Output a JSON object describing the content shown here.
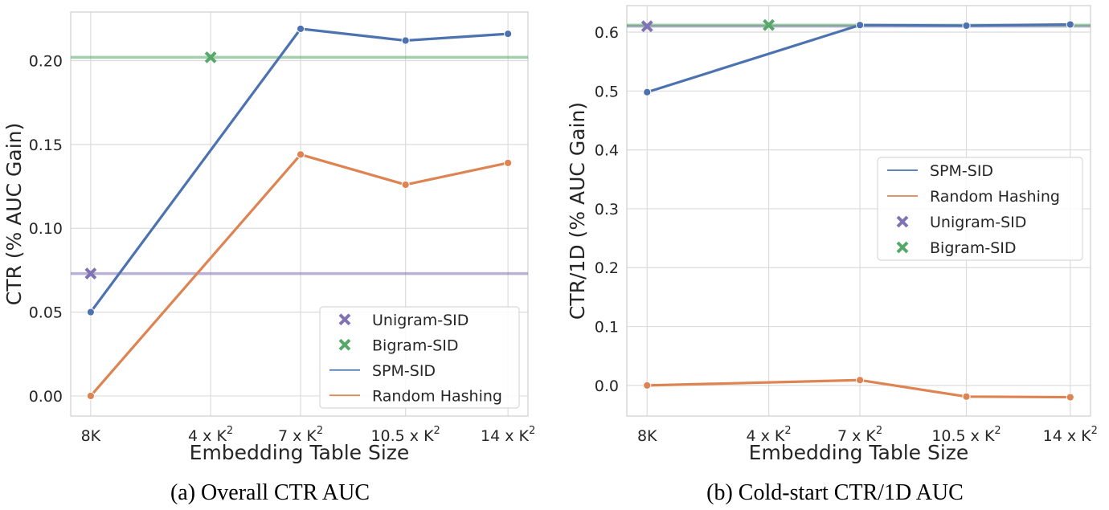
{
  "chart_data": [
    {
      "type": "line",
      "caption": "(a) Overall CTR AUC",
      "xlabel": "Embedding Table Size",
      "ylabel": "CTR (% AUC Gain)",
      "x_ticks": [
        {
          "pos": 8,
          "base": "8K",
          "sup": ""
        },
        {
          "pos": 56,
          "base": "4 x K",
          "sup": "2"
        },
        {
          "pos": 92,
          "base": "7 x K",
          "sup": "2"
        },
        {
          "pos": 134,
          "base": "10.5 x K",
          "sup": "2"
        },
        {
          "pos": 175,
          "base": "14 x K",
          "sup": "2"
        }
      ],
      "xlim": [
        0,
        183
      ],
      "ylim": [
        -0.012,
        0.229
      ],
      "y_ticks": [
        "0.00",
        "0.05",
        "0.10",
        "0.15",
        "0.20"
      ],
      "y_tick_values": [
        0.0,
        0.05,
        0.1,
        0.15,
        0.2
      ],
      "series": [
        {
          "name": "SPM-SID",
          "color": "#4c72b0",
          "x": [
            8,
            92,
            134,
            175
          ],
          "values": [
            0.05,
            0.219,
            0.212,
            0.216
          ]
        },
        {
          "name": "Random Hashing",
          "color": "#dd8452",
          "x": [
            8,
            92,
            134,
            175
          ],
          "values": [
            0.0,
            0.144,
            0.126,
            0.139
          ]
        }
      ],
      "reference_lines": [
        {
          "name": "Unigram-SID",
          "color": "#8172b3",
          "value": 0.073,
          "marker_x": 8
        },
        {
          "name": "Bigram-SID",
          "color": "#55a868",
          "value": 0.202,
          "marker_x": 56
        }
      ],
      "legend": {
        "position": "lower-right",
        "order": [
          "Unigram-SID",
          "Bigram-SID",
          "SPM-SID",
          "Random Hashing"
        ]
      },
      "grid": true
    },
    {
      "type": "line",
      "caption": "(b) Cold-start CTR/1D AUC",
      "xlabel": "Embedding Table Size",
      "ylabel": "CTR/1D (% AUC Gain)",
      "x_ticks": [
        {
          "pos": 8,
          "base": "8K",
          "sup": ""
        },
        {
          "pos": 56,
          "base": "4 x K",
          "sup": "2"
        },
        {
          "pos": 92,
          "base": "7 x K",
          "sup": "2"
        },
        {
          "pos": 134,
          "base": "10.5 x K",
          "sup": "2"
        },
        {
          "pos": 175,
          "base": "14 x K",
          "sup": "2"
        }
      ],
      "xlim": [
        0,
        183
      ],
      "ylim": [
        -0.052,
        0.645
      ],
      "y_ticks": [
        "0.0",
        "0.1",
        "0.2",
        "0.3",
        "0.4",
        "0.5",
        "0.6"
      ],
      "y_tick_values": [
        0.0,
        0.1,
        0.2,
        0.3,
        0.4,
        0.5,
        0.6
      ],
      "series": [
        {
          "name": "SPM-SID",
          "color": "#4c72b0",
          "x": [
            8,
            92,
            134,
            175
          ],
          "values": [
            0.498,
            0.612,
            0.611,
            0.613
          ]
        },
        {
          "name": "Random Hashing",
          "color": "#dd8452",
          "x": [
            8,
            92,
            134,
            175
          ],
          "values": [
            0.0,
            0.009,
            -0.019,
            -0.02
          ]
        }
      ],
      "reference_lines": [
        {
          "name": "Unigram-SID",
          "color": "#8172b3",
          "value": 0.61,
          "marker_x": 8
        },
        {
          "name": "Bigram-SID",
          "color": "#55a868",
          "value": 0.612,
          "marker_x": 56
        }
      ],
      "legend": {
        "position": "center-right",
        "order": [
          "SPM-SID",
          "Random Hashing",
          "Unigram-SID",
          "Bigram-SID"
        ]
      },
      "grid": true
    }
  ]
}
